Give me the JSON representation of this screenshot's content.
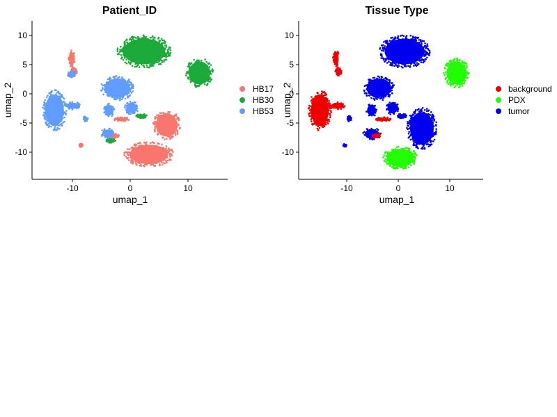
{
  "chart_data": [
    {
      "type": "scatter",
      "title": "Patient_ID",
      "xlabel": "umap_1",
      "ylabel": "umap_2",
      "xlim": [
        -17.5,
        16.5
      ],
      "ylim": [
        -15,
        13
      ],
      "xticks": [
        -10,
        0,
        10
      ],
      "xtick_labels": [
        "-10",
        "0",
        "10"
      ],
      "yticks": [
        10,
        5,
        0,
        -5,
        -10
      ],
      "ytick_labels": [
        "10",
        "5",
        "0",
        "-5",
        "-10"
      ],
      "grid": false,
      "legend_position": "right",
      "legend": [
        {
          "label": "HB17",
          "color": "#F8766D"
        },
        {
          "label": "HB30",
          "color": "#1CAA3A"
        },
        {
          "label": "HB53",
          "color": "#619CFF"
        }
      ],
      "clusters": [
        {
          "series": "HB30",
          "color": "#1CAA3A",
          "center": [
            2,
            7.6
          ],
          "radius": [
            4.7,
            2.9
          ]
        },
        {
          "series": "HB30",
          "color": "#1CAA3A",
          "center": [
            11.6,
            3.8
          ],
          "radius": [
            2.4,
            2.6
          ]
        },
        {
          "series": "HB30",
          "color": "#1CAA3A",
          "center": [
            -3.8,
            -8.1
          ],
          "radius": [
            0.8,
            0.5
          ]
        },
        {
          "series": "HB30",
          "color": "#1CAA3A",
          "center": [
            1.5,
            -3.8
          ],
          "radius": [
            1.0,
            0.4
          ]
        },
        {
          "series": "HB17",
          "color": "#F8766D",
          "center": [
            -10.6,
            6.3
          ],
          "radius": [
            0.6,
            1.5
          ]
        },
        {
          "series": "HB17",
          "color": "#F8766D",
          "center": [
            -10.2,
            4.0
          ],
          "radius": [
            0.6,
            0.8
          ]
        },
        {
          "series": "HB17",
          "color": "#F8766D",
          "center": [
            2.8,
            -10.6
          ],
          "radius": [
            4.3,
            2.2
          ]
        },
        {
          "series": "HB17",
          "color": "#F8766D",
          "center": [
            5.9,
            -5.4
          ],
          "radius": [
            2.4,
            2.6
          ]
        },
        {
          "series": "HB17",
          "color": "#F8766D",
          "center": [
            -1.9,
            -4.4
          ],
          "radius": [
            1.4,
            0.4
          ]
        },
        {
          "series": "HB17",
          "color": "#F8766D",
          "center": [
            -3.2,
            -7.3
          ],
          "radius": [
            0.9,
            0.4
          ]
        },
        {
          "series": "HB17",
          "color": "#F8766D",
          "center": [
            -9.0,
            -9.0
          ],
          "radius": [
            0.3,
            0.3
          ]
        },
        {
          "series": "HB53",
          "color": "#619CFF",
          "center": [
            -2.7,
            1.1
          ],
          "radius": [
            2.9,
            2.2
          ]
        },
        {
          "series": "HB53",
          "color": "#619CFF",
          "center": [
            -13.6,
            -2.8
          ],
          "radius": [
            2.1,
            3.6
          ]
        },
        {
          "series": "HB53",
          "color": "#619CFF",
          "center": [
            -10.4,
            -2.0
          ],
          "radius": [
            1.4,
            0.7
          ]
        },
        {
          "series": "HB53",
          "color": "#619CFF",
          "center": [
            -10.6,
            3.6
          ],
          "radius": [
            0.7,
            0.6
          ]
        },
        {
          "series": "HB53",
          "color": "#619CFF",
          "center": [
            -4.1,
            -2.8
          ],
          "radius": [
            1.0,
            1.2
          ]
        },
        {
          "series": "HB53",
          "color": "#619CFF",
          "center": [
            -0.2,
            -2.4
          ],
          "radius": [
            1.2,
            1.2
          ]
        },
        {
          "series": "HB53",
          "color": "#619CFF",
          "center": [
            -4.3,
            -6.9
          ],
          "radius": [
            1.3,
            0.9
          ]
        },
        {
          "series": "HB53",
          "color": "#619CFF",
          "center": [
            -8.2,
            -4.3
          ],
          "radius": [
            0.4,
            0.5
          ]
        }
      ]
    },
    {
      "type": "scatter",
      "title": "Tissue Type",
      "xlabel": "umap_1",
      "ylabel": "umap_2",
      "xlim": [
        -17.5,
        16.5
      ],
      "ylim": [
        -15,
        13
      ],
      "xticks": [
        -10,
        0,
        10
      ],
      "xtick_labels": [
        "-10",
        "0",
        "10"
      ],
      "yticks": [
        10,
        5,
        0,
        -5,
        -10
      ],
      "ytick_labels": [
        "10",
        "5",
        "0",
        "-5",
        "-10"
      ],
      "grid": false,
      "legend_position": "right",
      "legend": [
        {
          "label": "background",
          "color": "#EE0000"
        },
        {
          "label": "PDX",
          "color": "#22FF00"
        },
        {
          "label": "tumor",
          "color": "#0000EE"
        }
      ],
      "clusters": [
        {
          "series": "tumor",
          "color": "#0000EE",
          "center": [
            2,
            7.6
          ],
          "radius": [
            4.7,
            2.9
          ]
        },
        {
          "series": "tumor",
          "color": "#0000EE",
          "center": [
            -2.7,
            1.1
          ],
          "radius": [
            2.9,
            2.2
          ]
        },
        {
          "series": "tumor",
          "color": "#0000EE",
          "center": [
            5.2,
            -6.0
          ],
          "radius": [
            2.8,
            3.7
          ]
        },
        {
          "series": "tumor",
          "color": "#0000EE",
          "center": [
            -4.1,
            -2.8
          ],
          "radius": [
            1.0,
            1.2
          ]
        },
        {
          "series": "tumor",
          "color": "#0000EE",
          "center": [
            -0.2,
            -2.4
          ],
          "radius": [
            1.2,
            1.2
          ]
        },
        {
          "series": "tumor",
          "color": "#0000EE",
          "center": [
            -4.0,
            -7.0
          ],
          "radius": [
            1.7,
            1.1
          ]
        },
        {
          "series": "tumor",
          "color": "#0000EE",
          "center": [
            -8.2,
            -4.3
          ],
          "radius": [
            0.4,
            0.5
          ]
        },
        {
          "series": "tumor",
          "color": "#0000EE",
          "center": [
            -9.0,
            -9.0
          ],
          "radius": [
            0.3,
            0.3
          ]
        },
        {
          "series": "tumor",
          "color": "#0000EE",
          "center": [
            1.5,
            -3.8
          ],
          "radius": [
            1.0,
            0.4
          ]
        },
        {
          "series": "PDX",
          "color": "#22FF00",
          "center": [
            11.6,
            3.8
          ],
          "radius": [
            2.4,
            2.6
          ]
        },
        {
          "series": "PDX",
          "color": "#22FF00",
          "center": [
            1.2,
            -11.2
          ],
          "radius": [
            3.2,
            2.0
          ]
        },
        {
          "series": "background",
          "color": "#EE0000",
          "center": [
            -10.6,
            6.3
          ],
          "radius": [
            0.6,
            1.5
          ]
        },
        {
          "series": "background",
          "color": "#EE0000",
          "center": [
            -10.2,
            4.0
          ],
          "radius": [
            0.6,
            0.8
          ]
        },
        {
          "series": "background",
          "color": "#EE0000",
          "center": [
            -13.6,
            -2.8
          ],
          "radius": [
            2.1,
            3.6
          ]
        },
        {
          "series": "background",
          "color": "#EE0000",
          "center": [
            -10.4,
            -2.0
          ],
          "radius": [
            1.4,
            0.7
          ]
        },
        {
          "series": "background",
          "color": "#EE0000",
          "center": [
            -1.9,
            -4.4
          ],
          "radius": [
            1.4,
            0.4
          ]
        },
        {
          "series": "background",
          "color": "#EE0000",
          "center": [
            -3.2,
            -7.3
          ],
          "radius": [
            0.9,
            0.4
          ]
        }
      ]
    }
  ]
}
